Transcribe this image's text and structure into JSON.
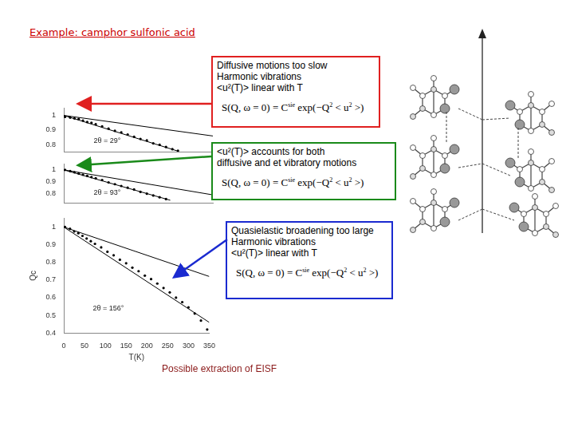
{
  "title": "Example: camphor sulfonic acid",
  "chart_data": [
    {
      "type": "scatter",
      "annotation": "2θ = 29°",
      "xlim": [
        0,
        350
      ],
      "ylim": [
        0.75,
        1.05
      ],
      "yticks": [
        0.8,
        0.9,
        1
      ],
      "grid": false,
      "tick_labels": "y",
      "series": [
        {
          "type": "scatter",
          "marker": "circle",
          "color": "#000000",
          "x": [
            3,
            15,
            25,
            35,
            45,
            55,
            65,
            75,
            90,
            105,
            120,
            135,
            150,
            165,
            180,
            195,
            210,
            225,
            240,
            255,
            268
          ],
          "values": [
            0.99,
            0.985,
            0.98,
            0.975,
            0.965,
            0.955,
            0.95,
            0.94,
            0.925,
            0.91,
            0.895,
            0.885,
            0.87,
            0.855,
            0.84,
            0.83,
            0.81,
            0.8,
            0.785,
            0.77,
            0.76
          ]
        },
        {
          "type": "line",
          "line_style": "solid",
          "color": "#000000",
          "x": [
            0,
            270
          ],
          "values": [
            1.0,
            0.755
          ]
        },
        {
          "type": "line",
          "line_style": "solid",
          "color": "#000000",
          "x": [
            0,
            350
          ],
          "values": [
            1.0,
            0.86
          ]
        }
      ]
    },
    {
      "type": "scatter",
      "annotation": "2θ = 93°",
      "xlim": [
        0,
        350
      ],
      "ylim": [
        0.72,
        1.05
      ],
      "yticks": [
        0.8,
        0.9,
        1
      ],
      "grid": false,
      "tick_labels": "y",
      "series": [
        {
          "type": "scatter",
          "marker": "circle",
          "color": "#000000",
          "x": [
            3,
            15,
            25,
            35,
            45,
            55,
            65,
            75,
            90,
            105,
            120,
            135,
            150,
            165,
            180,
            195,
            210,
            225,
            240
          ],
          "values": [
            1.0,
            0.99,
            0.98,
            0.97,
            0.96,
            0.95,
            0.94,
            0.93,
            0.915,
            0.895,
            0.88,
            0.865,
            0.85,
            0.835,
            0.815,
            0.8,
            0.785,
            0.77,
            0.755
          ]
        },
        {
          "type": "line",
          "line_style": "solid",
          "color": "#000000",
          "x": [
            0,
            250
          ],
          "values": [
            1.0,
            0.745
          ]
        },
        {
          "type": "line",
          "line_style": "solid",
          "color": "#000000",
          "x": [
            0,
            350
          ],
          "values": [
            1.0,
            0.79
          ]
        }
      ]
    },
    {
      "type": "scatter",
      "annotation": "2θ = 156°",
      "xlabel": "T(K)",
      "ylabel": "Qc",
      "xlim": [
        0,
        350
      ],
      "ylim": [
        0.4,
        1.05
      ],
      "xticks": [
        0,
        50,
        100,
        150,
        200,
        250,
        300,
        350
      ],
      "yticks": [
        0.4,
        0.5,
        0.6,
        0.7,
        0.8,
        0.9,
        1
      ],
      "grid": false,
      "series": [
        {
          "type": "scatter",
          "marker": "circle",
          "color": "#000000",
          "x": [
            3,
            15,
            25,
            35,
            45,
            55,
            65,
            75,
            90,
            105,
            120,
            135,
            150,
            165,
            180,
            195,
            210,
            225,
            240,
            255,
            270,
            285,
            300,
            315,
            330,
            345
          ],
          "values": [
            1.0,
            0.99,
            0.975,
            0.965,
            0.95,
            0.935,
            0.92,
            0.905,
            0.885,
            0.86,
            0.84,
            0.815,
            0.795,
            0.77,
            0.75,
            0.725,
            0.705,
            0.68,
            0.655,
            0.63,
            0.6,
            0.575,
            0.545,
            0.51,
            0.47,
            0.42
          ]
        },
        {
          "type": "line",
          "line_style": "solid",
          "color": "#000000",
          "x": [
            0,
            350
          ],
          "values": [
            1.0,
            0.46
          ]
        },
        {
          "type": "line",
          "line_style": "solid",
          "color": "#000000",
          "x": [
            0,
            350
          ],
          "values": [
            1.0,
            0.72
          ]
        }
      ]
    }
  ],
  "boxes": [
    {
      "color": "#e02020",
      "lines": [
        "Diffusive motions too slow",
        "Harmonic vibrations",
        "<u²(T)> linear with T"
      ],
      "formula": [
        {
          "text": "S(Q, ω = 0) = C"
        },
        {
          "text": "sie",
          "sup": true
        },
        {
          "text": " exp(−Q"
        },
        {
          "text": "2",
          "sup": true
        },
        {
          "text": " < u"
        },
        {
          "text": "2",
          "sup": true
        },
        {
          "text": " >)"
        }
      ]
    },
    {
      "color": "#1a8a1a",
      "lines": [
        "<u²(T)> accounts for both",
        "diffusive and et vibratory motions"
      ],
      "formula": [
        {
          "text": "S(Q, ω = 0) = C"
        },
        {
          "text": "sie",
          "sup": true
        },
        {
          "text": " exp(−Q"
        },
        {
          "text": "2",
          "sup": true
        },
        {
          "text": " < u"
        },
        {
          "text": "2",
          "sup": true
        },
        {
          "text": " >)"
        }
      ]
    },
    {
      "color": "#1a2ad0",
      "lines": [
        "Quasielastic broadening too large",
        "Harmonic vibrations",
        "<u²(T)> linear with T"
      ],
      "formula": [
        {
          "text": "S(Q, ω = 0) = C"
        },
        {
          "text": "sie",
          "sup": true
        },
        {
          "text": " exp(−Q"
        },
        {
          "text": "2",
          "sup": true
        },
        {
          "text": " < u"
        },
        {
          "text": "2",
          "sup": true
        },
        {
          "text": " >)"
        }
      ]
    }
  ],
  "footer": "Possible extraction of EISF"
}
